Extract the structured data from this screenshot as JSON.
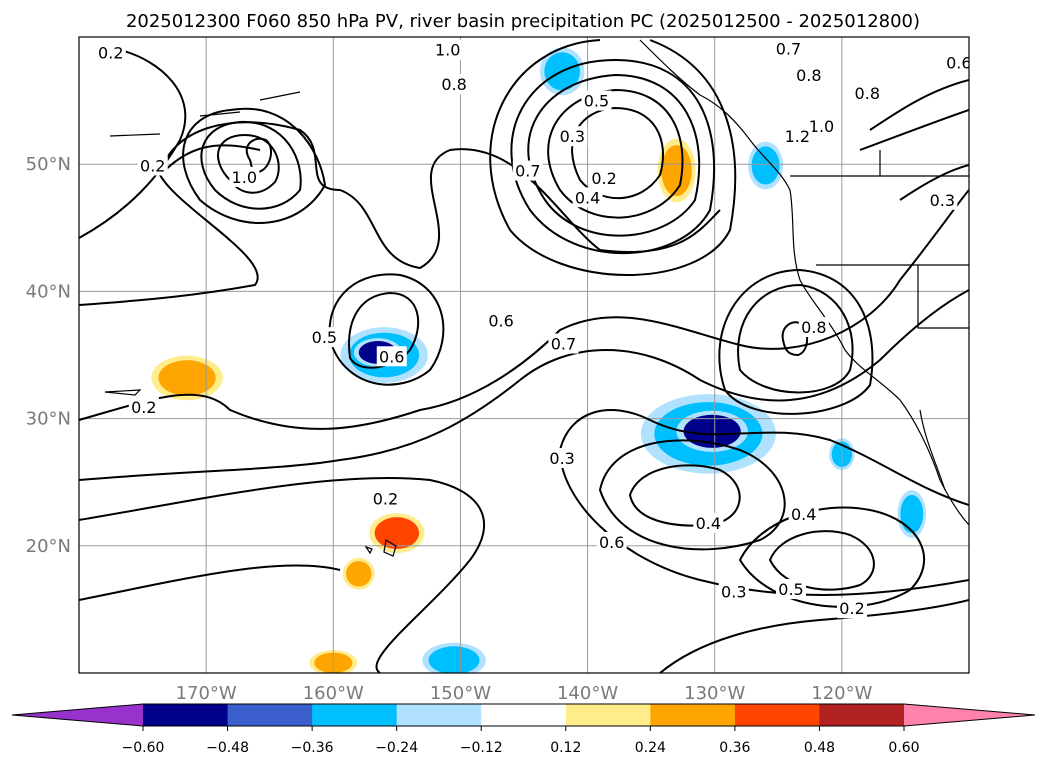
{
  "figure": {
    "title": "2025012300 F060 850 hPa PV, river basin precipitation PC (2025012500 - 2025012800)"
  },
  "map": {
    "projection": "PlateCarree",
    "lon_range": [
      -180,
      -110
    ],
    "lat_range": [
      10,
      60
    ],
    "gridlines": true,
    "coastlines": true,
    "us_state_borders": true
  },
  "axes": {
    "lon_ticks": [
      {
        "value": -170,
        "label": "170°W"
      },
      {
        "value": -160,
        "label": "160°W"
      },
      {
        "value": -150,
        "label": "150°W"
      },
      {
        "value": -140,
        "label": "140°W"
      },
      {
        "value": -130,
        "label": "130°W"
      },
      {
        "value": -120,
        "label": "120°W"
      }
    ],
    "lat_ticks": [
      {
        "value": 20,
        "label": "20°N"
      },
      {
        "value": 30,
        "label": "30°N"
      },
      {
        "value": 40,
        "label": "40°N"
      },
      {
        "value": 50,
        "label": "50°N"
      }
    ],
    "tick_color": "#7a7a7a"
  },
  "contour_labels": [
    {
      "text": "0.2",
      "lon": -177.5,
      "lat": 58.8
    },
    {
      "text": "1.0",
      "lon": -151.0,
      "lat": 59.0
    },
    {
      "text": "0.8",
      "lon": -150.5,
      "lat": 56.3
    },
    {
      "text": "0.7",
      "lon": -124.2,
      "lat": 59.1
    },
    {
      "text": "0.8",
      "lon": -122.6,
      "lat": 57.0
    },
    {
      "text": "0.8",
      "lon": -118.0,
      "lat": 55.6
    },
    {
      "text": "0.6",
      "lon": -110.8,
      "lat": 58.0
    },
    {
      "text": "0.5",
      "lon": -139.3,
      "lat": 55.0
    },
    {
      "text": "0.3",
      "lon": -141.2,
      "lat": 52.2
    },
    {
      "text": "0.2",
      "lon": -138.7,
      "lat": 48.9
    },
    {
      "text": "0.4",
      "lon": -140.0,
      "lat": 47.4
    },
    {
      "text": "0.7",
      "lon": -144.7,
      "lat": 49.5
    },
    {
      "text": "1.0",
      "lon": -121.6,
      "lat": 53.0
    },
    {
      "text": "1.2",
      "lon": -123.5,
      "lat": 52.2
    },
    {
      "text": "0.2",
      "lon": -174.2,
      "lat": 49.9
    },
    {
      "text": "1.0",
      "lon": -167.0,
      "lat": 49.0
    },
    {
      "text": "0.3",
      "lon": -112.1,
      "lat": 47.2
    },
    {
      "text": "0.5",
      "lon": -160.7,
      "lat": 36.4
    },
    {
      "text": "0.6",
      "lon": -155.4,
      "lat": 34.9
    },
    {
      "text": "0.6",
      "lon": -146.8,
      "lat": 37.7
    },
    {
      "text": "0.7",
      "lon": -141.9,
      "lat": 35.9
    },
    {
      "text": "0.8",
      "lon": -122.2,
      "lat": 37.2
    },
    {
      "text": "0.2",
      "lon": -174.9,
      "lat": 30.9
    },
    {
      "text": "0.3",
      "lon": -142.0,
      "lat": 26.9
    },
    {
      "text": "0.2",
      "lon": -155.9,
      "lat": 23.7
    },
    {
      "text": "0.6",
      "lon": -138.1,
      "lat": 20.3
    },
    {
      "text": "0.4",
      "lon": -130.5,
      "lat": 21.8
    },
    {
      "text": "0.4",
      "lon": -123.0,
      "lat": 22.5
    },
    {
      "text": "0.3",
      "lon": -128.5,
      "lat": 16.4
    },
    {
      "text": "0.5",
      "lon": -124.0,
      "lat": 16.6
    },
    {
      "text": "0.2",
      "lon": -119.2,
      "lat": 15.1
    }
  ],
  "precip_pc_areas": [
    {
      "type": "negative",
      "level": -0.24,
      "center": [
        -142.0,
        57.3
      ],
      "size": [
        2.8,
        3.0
      ]
    },
    {
      "type": "negative",
      "level": -0.24,
      "center": [
        -156.0,
        35.0
      ],
      "size": [
        5.5,
        3.5
      ]
    },
    {
      "type": "negative",
      "level": -0.48,
      "center": [
        -156.5,
        35.2
      ],
      "size": [
        3.0,
        1.8
      ]
    },
    {
      "type": "negative",
      "level": -0.24,
      "center": [
        -130.5,
        28.8
      ],
      "size": [
        8.5,
        5.0
      ]
    },
    {
      "type": "negative",
      "level": -0.48,
      "center": [
        -130.2,
        29.0
      ],
      "size": [
        4.5,
        2.6
      ]
    },
    {
      "type": "negative",
      "level": -0.24,
      "center": [
        -126.0,
        49.9
      ],
      "size": [
        2.2,
        3.0
      ]
    },
    {
      "type": "negative",
      "level": -0.24,
      "center": [
        -120.0,
        27.2
      ],
      "size": [
        1.6,
        2.0
      ]
    },
    {
      "type": "negative",
      "level": -0.24,
      "center": [
        -114.5,
        22.5
      ],
      "size": [
        1.8,
        3.0
      ]
    },
    {
      "type": "negative",
      "level": -0.24,
      "center": [
        -150.5,
        11.0
      ],
      "size": [
        4.0,
        2.2
      ]
    },
    {
      "type": "positive",
      "level": 0.24,
      "center": [
        -171.5,
        33.2
      ],
      "size": [
        4.5,
        2.8
      ]
    },
    {
      "type": "positive",
      "level": 0.24,
      "center": [
        -133.0,
        49.5
      ],
      "size": [
        2.4,
        4.0
      ]
    },
    {
      "type": "positive",
      "level": 0.36,
      "center": [
        -155.0,
        21.0
      ],
      "size": [
        3.5,
        2.5
      ]
    },
    {
      "type": "positive",
      "level": 0.24,
      "center": [
        -158.0,
        17.8
      ],
      "size": [
        2.0,
        2.0
      ]
    },
    {
      "type": "positive",
      "level": 0.24,
      "center": [
        -160.0,
        10.8
      ],
      "size": [
        3.0,
        1.6
      ]
    }
  ],
  "colorbar": {
    "levels": [
      -0.6,
      -0.48,
      -0.36,
      -0.24,
      -0.12,
      0.12,
      0.24,
      0.36,
      0.48,
      0.6
    ],
    "tick_labels": [
      "−0.60",
      "−0.48",
      "−0.36",
      "−0.24",
      "−0.12",
      "0.12",
      "0.24",
      "0.36",
      "0.48",
      "0.60"
    ],
    "colors": [
      "#9932cc",
      "#00008b",
      "#3a5fcd",
      "#00bfff",
      "#b0e2ff",
      "#ffffff",
      "#ffec8b",
      "#ffa500",
      "#ff4500",
      "#b22222",
      "#ff82ab"
    ],
    "extend": "both"
  }
}
